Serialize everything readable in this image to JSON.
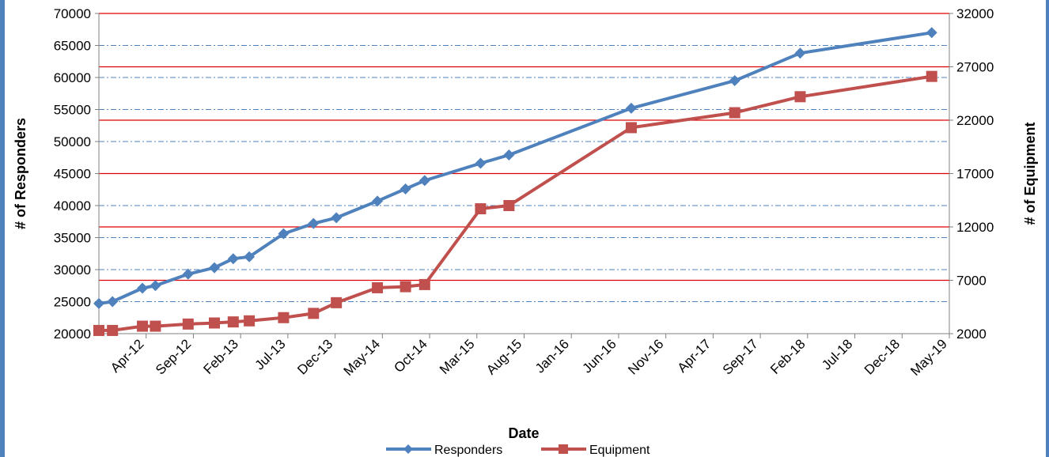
{
  "chart_data": {
    "type": "line",
    "title": "",
    "xlabel": "Date",
    "ylabel_left": "# of Responders",
    "ylabel_right": "# of Equipment",
    "x_tick_labels": [
      "Apr-12",
      "Sep-12",
      "Feb-13",
      "Jul-13",
      "Dec-13",
      "May-14",
      "Oct-14",
      "Mar-15",
      "Aug-15",
      "Jan-16",
      "Jun-16",
      "Nov-16",
      "Apr-17",
      "Sep-17",
      "Feb-18",
      "Jul-18",
      "Dec-18",
      "May-19"
    ],
    "ylim_left": [
      20000,
      70000
    ],
    "yticks_left": [
      20000,
      25000,
      30000,
      35000,
      40000,
      45000,
      50000,
      55000,
      60000,
      65000,
      70000
    ],
    "ylim_right": [
      2000,
      32000
    ],
    "yticks_right": [
      2000,
      7000,
      12000,
      17000,
      22000,
      27000,
      32000
    ],
    "grid": true,
    "legend_position": "bottom",
    "series": [
      {
        "name": "Responders",
        "axis": "left",
        "color": "#4f81bd",
        "marker": "diamond",
        "x": [
          "2012-04-01",
          "2012-05-15",
          "2012-08-20",
          "2012-10-01",
          "2013-01-15",
          "2013-04-10",
          "2013-06-10",
          "2013-08-01",
          "2013-11-20",
          "2014-02-25",
          "2014-05-10",
          "2014-09-20",
          "2014-12-20",
          "2015-02-20",
          "2015-08-20",
          "2015-11-20",
          "2016-12-20",
          "2017-11-20",
          "2018-06-20",
          "2019-08-20"
        ],
        "values": [
          24700,
          25000,
          27100,
          27500,
          29300,
          30300,
          31700,
          32000,
          35600,
          37200,
          38100,
          40700,
          42600,
          43900,
          46600,
          47900,
          55200,
          59500,
          63800,
          67000
        ]
      },
      {
        "name": "Equipment",
        "axis": "right",
        "color": "#c0504d",
        "marker": "square",
        "x": [
          "2012-04-01",
          "2012-05-15",
          "2012-08-20",
          "2012-10-01",
          "2013-01-15",
          "2013-04-10",
          "2013-06-10",
          "2013-08-01",
          "2013-11-20",
          "2014-02-25",
          "2014-05-10",
          "2014-09-20",
          "2014-12-20",
          "2015-02-20",
          "2015-08-20",
          "2015-11-20",
          "2016-12-20",
          "2017-11-20",
          "2018-06-20",
          "2019-08-20"
        ],
        "values": [
          2300,
          2300,
          2700,
          2700,
          2900,
          3000,
          3100,
          3200,
          3500,
          3900,
          4900,
          6300,
          6400,
          6600,
          13700,
          14000,
          21300,
          22700,
          24200,
          26100
        ]
      }
    ]
  }
}
